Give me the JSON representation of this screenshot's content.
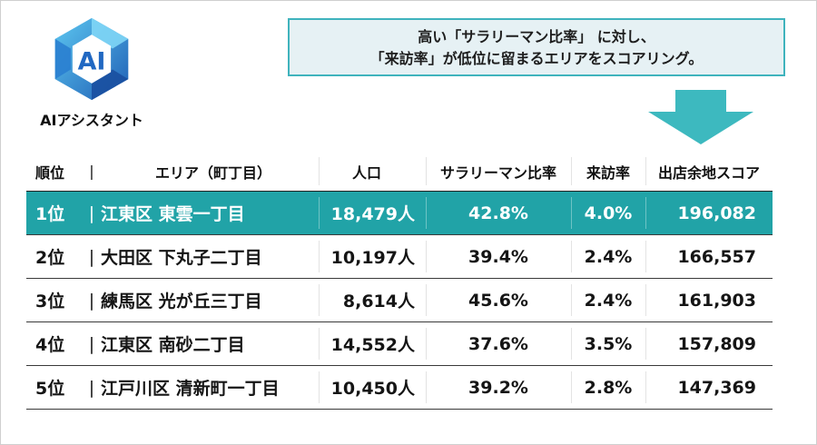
{
  "logo": {
    "mark_text": "AI",
    "caption": "AIアシスタント",
    "colors": {
      "dark": "#1f5fb5",
      "mid": "#2e8fd6",
      "light": "#5cc6f0"
    }
  },
  "callout": {
    "line1": "高い「サラリーマン比率」 に対し、",
    "line2": "「来訪率」が低位に留まるエリアをスコアリング。",
    "border_color": "#3fb3bd",
    "bg_color": "#e6f1f4"
  },
  "arrow": {
    "icon": "down-arrow-icon",
    "color": "#3db9bf"
  },
  "table": {
    "headers": {
      "rank": "順位",
      "separator": "|",
      "area": "エリア（町丁目）",
      "population": "人口",
      "salaryman_ratio": "サラリーマン比率",
      "visit_rate": "来訪率",
      "score": "出店余地スコア"
    },
    "highlight_color": "#21a3a7",
    "rows": [
      {
        "rank": "1位",
        "sep": "|",
        "area": "江東区 東雲一丁目",
        "population": "18,479人",
        "ratio": "42.8%",
        "visit": "4.0%",
        "score": "196,082"
      },
      {
        "rank": "2位",
        "sep": "|",
        "area": "大田区 下丸子二丁目",
        "population": "10,197人",
        "ratio": "39.4%",
        "visit": "2.4%",
        "score": "166,557"
      },
      {
        "rank": "3位",
        "sep": "|",
        "area": "練馬区 光が丘三丁目",
        "population": "8,614人",
        "ratio": "45.6%",
        "visit": "2.4%",
        "score": "161,903"
      },
      {
        "rank": "4位",
        "sep": "|",
        "area": "江東区 南砂二丁目",
        "population": "14,552人",
        "ratio": "37.6%",
        "visit": "3.5%",
        "score": "157,809"
      },
      {
        "rank": "5位",
        "sep": "|",
        "area": "江戸川区 清新町一丁目",
        "population": "10,450人",
        "ratio": "39.2%",
        "visit": "2.8%",
        "score": "147,369"
      }
    ]
  }
}
